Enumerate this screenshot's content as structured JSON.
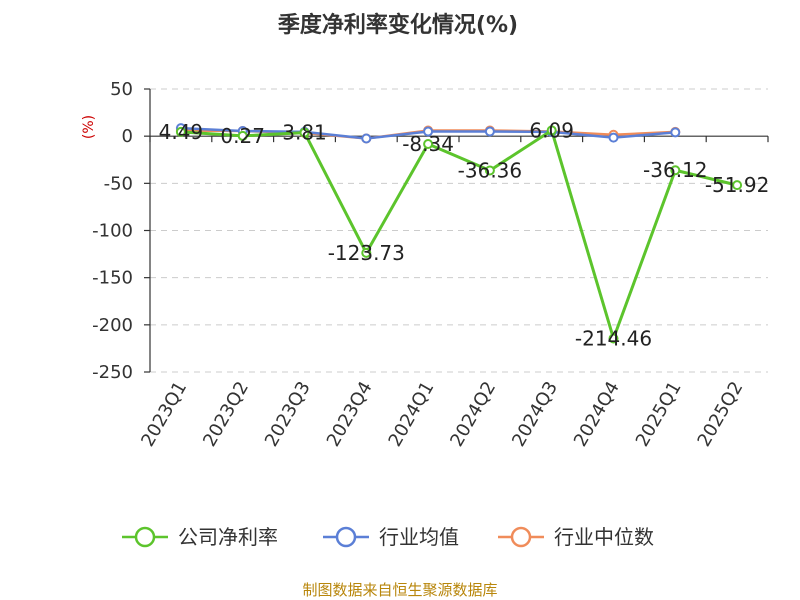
{
  "chart_data": {
    "type": "line",
    "title": "季度净利率变化情况(%)",
    "unit": "(%)",
    "categories": [
      "2023Q1",
      "2023Q2",
      "2023Q3",
      "2023Q4",
      "2024Q1",
      "2024Q2",
      "2024Q3",
      "2024Q4",
      "2025Q1",
      "2025Q2"
    ],
    "yticks": [
      50,
      0,
      -50,
      -100,
      -150,
      -200,
      -250
    ],
    "ylim": [
      -250,
      50
    ],
    "grid": true,
    "legend_position": "bottom",
    "series": [
      {
        "name": "公司净利率",
        "color": "#5cc42c",
        "values": [
          4.49,
          0.27,
          3.81,
          -123.73,
          -8.34,
          -36.36,
          6.09,
          -214.46,
          -36.12,
          -51.92
        ],
        "labels": [
          "4.49",
          "0.27",
          "3.81",
          "-123.73",
          "-8.34",
          "-36.36",
          "6.09",
          "-214.46",
          "-36.12",
          "-51.92"
        ]
      },
      {
        "name": "行业均值",
        "color": "#5b7fd6",
        "values": [
          8.5,
          5.5,
          4.5,
          -2.5,
          5.0,
          5.0,
          4.5,
          -1.5,
          4.0,
          null
        ]
      },
      {
        "name": "行业中位数",
        "color": "#f08c5a",
        "values": [
          6.0,
          5.5,
          3.5,
          -2.5,
          6.0,
          6.0,
          5.0,
          1.5,
          4.5,
          null
        ]
      }
    ]
  },
  "footer": "制图数据来自恒生聚源数据库"
}
